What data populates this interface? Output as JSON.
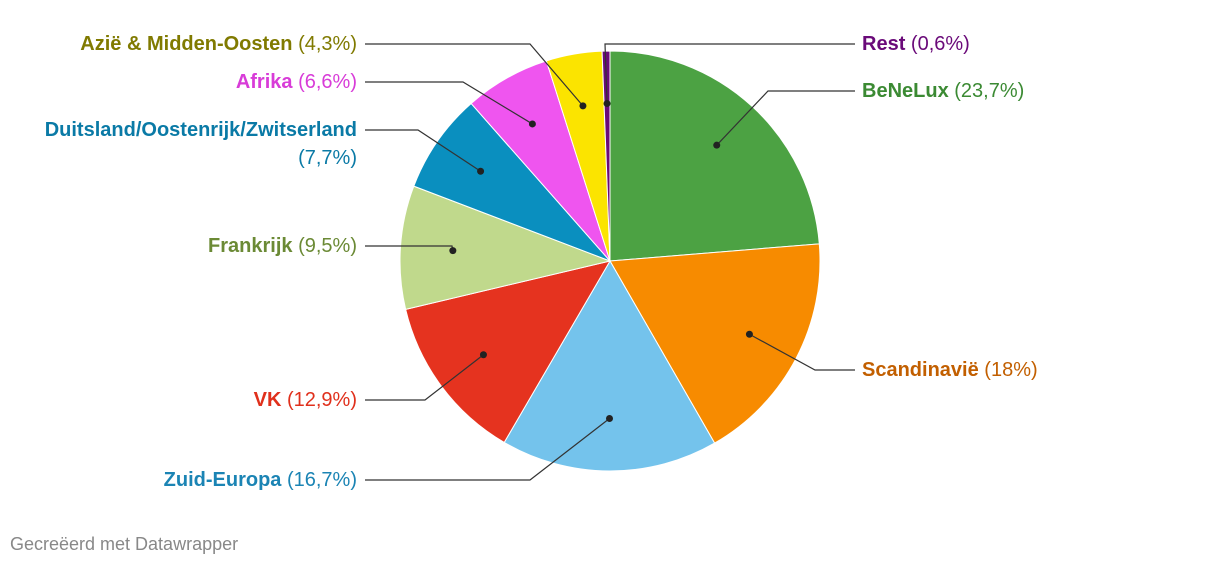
{
  "chart_data": {
    "type": "pie",
    "categories": [
      "BeNeLux",
      "Scandinavië",
      "Zuid-Europa",
      "VK",
      "Frankrijk",
      "Duitsland/Oostenrijk/Zwitserland",
      "Afrika",
      "Azië & Midden-Oosten",
      "Rest"
    ],
    "values": [
      23.7,
      18,
      16.7,
      12.9,
      9.5,
      7.7,
      6.6,
      4.3,
      0.6
    ],
    "value_labels": [
      "(23,7%)",
      "(18%)",
      "(16,7%)",
      "(12,9%)",
      "(9,5%)",
      "(7,7%)",
      "(6,6%)",
      "(4,3%)",
      "(0,6%)"
    ],
    "colors": [
      "#4ca243",
      "#f78b00",
      "#74c3ec",
      "#e5331f",
      "#c0d98c",
      "#0a8fbf",
      "#ef55ef",
      "#fbe400",
      "#6a0a79"
    ],
    "label_colors": [
      "#3b8a33",
      "#c25f00",
      "#1b84b4",
      "#e0301c",
      "#6b8a35",
      "#0a7aa6",
      "#d83cd8",
      "#807a00",
      "#6a0a79"
    ],
    "credit": "Gecreëerd met Datawrapper"
  }
}
